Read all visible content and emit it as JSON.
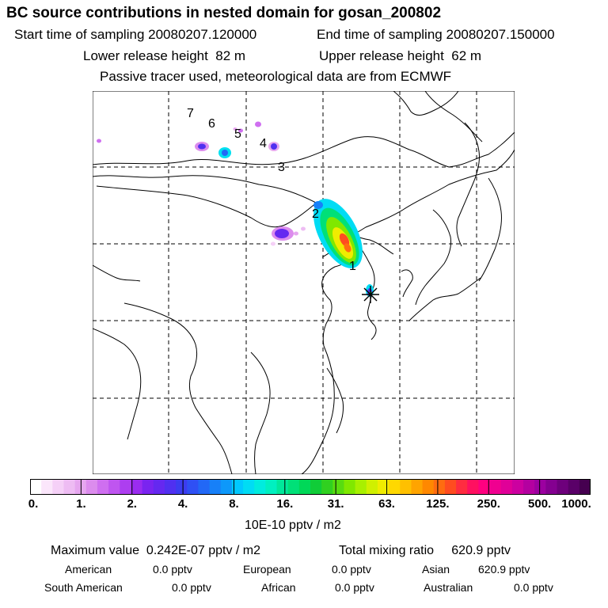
{
  "header": {
    "title": "BC  source contributions in nested domain for gosan_200802",
    "start_label": "Start time of sampling",
    "start_value": "20080207.120000",
    "end_label": "End time of sampling",
    "end_value": "20080207.150000",
    "lower_label": "Lower release height",
    "lower_value": "82 m",
    "upper_label": "Upper release height",
    "upper_value": "62 m",
    "note": "Passive tracer used, meteorological data are from ECMWF"
  },
  "map": {
    "site_marker": "star-marker",
    "trajectory_labels": [
      "1",
      "2",
      "3",
      "4",
      "5",
      "6",
      "7"
    ]
  },
  "colorbar": {
    "tick_labels": [
      "0.",
      "1.",
      "2.",
      "4.",
      "8.",
      "16.",
      "31.",
      "63.",
      "125.",
      "250.",
      "500.",
      "1000."
    ],
    "colors": [
      "#ffffff",
      "#fbe6fb",
      "#f5d0f7",
      "#eebcf3",
      "#e6a6ef",
      "#dc8ced",
      "#cf6ff0",
      "#bf55f0",
      "#ad3ef0",
      "#9a2cf0",
      "#7a24f0",
      "#6528f0",
      "#5030f0",
      "#3c3cf0",
      "#2f50f4",
      "#2268f6",
      "#1780f8",
      "#0d98fa",
      "#00c8ff",
      "#00dcf4",
      "#00ecde",
      "#00f0c0",
      "#00e89a",
      "#00e078",
      "#00d858",
      "#10cc38",
      "#30d020",
      "#58dc10",
      "#80e800",
      "#a8f000",
      "#d0f000",
      "#f0ec00",
      "#ffd800",
      "#ffc000",
      "#ffa400",
      "#ff8800",
      "#ff6c10",
      "#ff4c20",
      "#ff2c40",
      "#ff1060",
      "#ff0080",
      "#f00090",
      "#e00098",
      "#cc00a0",
      "#b400a0",
      "#9c00a0",
      "#840090",
      "#6e007c",
      "#5a0068",
      "#460050"
    ],
    "unit": "10E-10 pptv / m2"
  },
  "stats": {
    "max_label": "Maximum value",
    "max_value": "0.242E-07 pptv / m2",
    "total_label": "Total mixing ratio",
    "total_value": "620.9 pptv",
    "american_label": "American",
    "american_value": "0.0 pptv",
    "european_label": "European",
    "european_value": "0.0 pptv",
    "asian_label": "Asian",
    "asian_value": "620.9 pptv",
    "south_american_label": "South American",
    "south_american_value": "0.0 pptv",
    "african_label": "African",
    "african_value": "0.0 pptv",
    "australian_label": "Australian",
    "australian_value": "0.0 pptv"
  }
}
